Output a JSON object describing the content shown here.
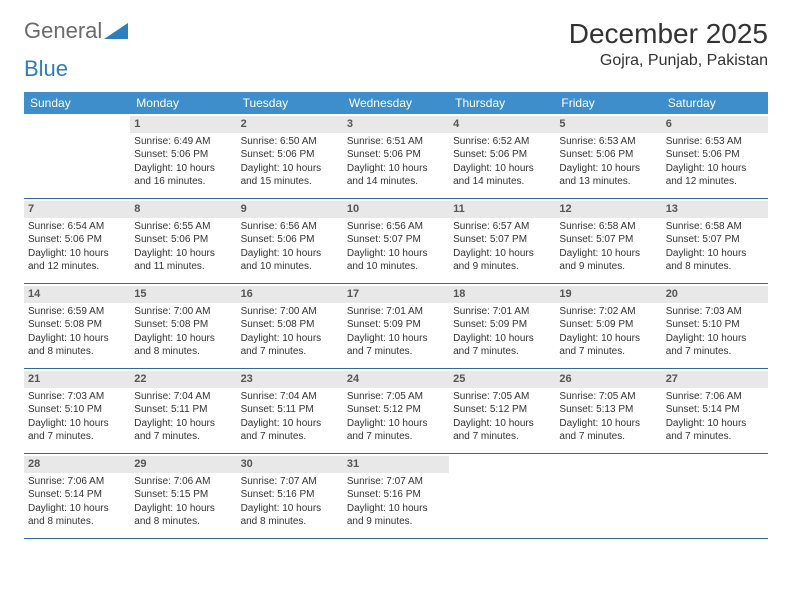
{
  "logo": {
    "text1": "General",
    "text2": "Blue"
  },
  "title": "December 2025",
  "location": "Gojra, Punjab, Pakistan",
  "colors": {
    "header_bg": "#3e8ecb",
    "header_text": "#ffffff",
    "daynum_bg": "#e8e8e8",
    "row_border": "#2b6a9e",
    "logo_gray": "#6b6b6b",
    "logo_blue": "#2b7fbf"
  },
  "days_of_week": [
    "Sunday",
    "Monday",
    "Tuesday",
    "Wednesday",
    "Thursday",
    "Friday",
    "Saturday"
  ],
  "weeks": [
    [
      {
        "n": "",
        "sr": "",
        "ss": "",
        "dl": ""
      },
      {
        "n": "1",
        "sr": "Sunrise: 6:49 AM",
        "ss": "Sunset: 5:06 PM",
        "dl": "Daylight: 10 hours and 16 minutes."
      },
      {
        "n": "2",
        "sr": "Sunrise: 6:50 AM",
        "ss": "Sunset: 5:06 PM",
        "dl": "Daylight: 10 hours and 15 minutes."
      },
      {
        "n": "3",
        "sr": "Sunrise: 6:51 AM",
        "ss": "Sunset: 5:06 PM",
        "dl": "Daylight: 10 hours and 14 minutes."
      },
      {
        "n": "4",
        "sr": "Sunrise: 6:52 AM",
        "ss": "Sunset: 5:06 PM",
        "dl": "Daylight: 10 hours and 14 minutes."
      },
      {
        "n": "5",
        "sr": "Sunrise: 6:53 AM",
        "ss": "Sunset: 5:06 PM",
        "dl": "Daylight: 10 hours and 13 minutes."
      },
      {
        "n": "6",
        "sr": "Sunrise: 6:53 AM",
        "ss": "Sunset: 5:06 PM",
        "dl": "Daylight: 10 hours and 12 minutes."
      }
    ],
    [
      {
        "n": "7",
        "sr": "Sunrise: 6:54 AM",
        "ss": "Sunset: 5:06 PM",
        "dl": "Daylight: 10 hours and 12 minutes."
      },
      {
        "n": "8",
        "sr": "Sunrise: 6:55 AM",
        "ss": "Sunset: 5:06 PM",
        "dl": "Daylight: 10 hours and 11 minutes."
      },
      {
        "n": "9",
        "sr": "Sunrise: 6:56 AM",
        "ss": "Sunset: 5:06 PM",
        "dl": "Daylight: 10 hours and 10 minutes."
      },
      {
        "n": "10",
        "sr": "Sunrise: 6:56 AM",
        "ss": "Sunset: 5:07 PM",
        "dl": "Daylight: 10 hours and 10 minutes."
      },
      {
        "n": "11",
        "sr": "Sunrise: 6:57 AM",
        "ss": "Sunset: 5:07 PM",
        "dl": "Daylight: 10 hours and 9 minutes."
      },
      {
        "n": "12",
        "sr": "Sunrise: 6:58 AM",
        "ss": "Sunset: 5:07 PM",
        "dl": "Daylight: 10 hours and 9 minutes."
      },
      {
        "n": "13",
        "sr": "Sunrise: 6:58 AM",
        "ss": "Sunset: 5:07 PM",
        "dl": "Daylight: 10 hours and 8 minutes."
      }
    ],
    [
      {
        "n": "14",
        "sr": "Sunrise: 6:59 AM",
        "ss": "Sunset: 5:08 PM",
        "dl": "Daylight: 10 hours and 8 minutes."
      },
      {
        "n": "15",
        "sr": "Sunrise: 7:00 AM",
        "ss": "Sunset: 5:08 PM",
        "dl": "Daylight: 10 hours and 8 minutes."
      },
      {
        "n": "16",
        "sr": "Sunrise: 7:00 AM",
        "ss": "Sunset: 5:08 PM",
        "dl": "Daylight: 10 hours and 7 minutes."
      },
      {
        "n": "17",
        "sr": "Sunrise: 7:01 AM",
        "ss": "Sunset: 5:09 PM",
        "dl": "Daylight: 10 hours and 7 minutes."
      },
      {
        "n": "18",
        "sr": "Sunrise: 7:01 AM",
        "ss": "Sunset: 5:09 PM",
        "dl": "Daylight: 10 hours and 7 minutes."
      },
      {
        "n": "19",
        "sr": "Sunrise: 7:02 AM",
        "ss": "Sunset: 5:09 PM",
        "dl": "Daylight: 10 hours and 7 minutes."
      },
      {
        "n": "20",
        "sr": "Sunrise: 7:03 AM",
        "ss": "Sunset: 5:10 PM",
        "dl": "Daylight: 10 hours and 7 minutes."
      }
    ],
    [
      {
        "n": "21",
        "sr": "Sunrise: 7:03 AM",
        "ss": "Sunset: 5:10 PM",
        "dl": "Daylight: 10 hours and 7 minutes."
      },
      {
        "n": "22",
        "sr": "Sunrise: 7:04 AM",
        "ss": "Sunset: 5:11 PM",
        "dl": "Daylight: 10 hours and 7 minutes."
      },
      {
        "n": "23",
        "sr": "Sunrise: 7:04 AM",
        "ss": "Sunset: 5:11 PM",
        "dl": "Daylight: 10 hours and 7 minutes."
      },
      {
        "n": "24",
        "sr": "Sunrise: 7:05 AM",
        "ss": "Sunset: 5:12 PM",
        "dl": "Daylight: 10 hours and 7 minutes."
      },
      {
        "n": "25",
        "sr": "Sunrise: 7:05 AM",
        "ss": "Sunset: 5:12 PM",
        "dl": "Daylight: 10 hours and 7 minutes."
      },
      {
        "n": "26",
        "sr": "Sunrise: 7:05 AM",
        "ss": "Sunset: 5:13 PM",
        "dl": "Daylight: 10 hours and 7 minutes."
      },
      {
        "n": "27",
        "sr": "Sunrise: 7:06 AM",
        "ss": "Sunset: 5:14 PM",
        "dl": "Daylight: 10 hours and 7 minutes."
      }
    ],
    [
      {
        "n": "28",
        "sr": "Sunrise: 7:06 AM",
        "ss": "Sunset: 5:14 PM",
        "dl": "Daylight: 10 hours and 8 minutes."
      },
      {
        "n": "29",
        "sr": "Sunrise: 7:06 AM",
        "ss": "Sunset: 5:15 PM",
        "dl": "Daylight: 10 hours and 8 minutes."
      },
      {
        "n": "30",
        "sr": "Sunrise: 7:07 AM",
        "ss": "Sunset: 5:16 PM",
        "dl": "Daylight: 10 hours and 8 minutes."
      },
      {
        "n": "31",
        "sr": "Sunrise: 7:07 AM",
        "ss": "Sunset: 5:16 PM",
        "dl": "Daylight: 10 hours and 9 minutes."
      },
      {
        "n": "",
        "sr": "",
        "ss": "",
        "dl": ""
      },
      {
        "n": "",
        "sr": "",
        "ss": "",
        "dl": ""
      },
      {
        "n": "",
        "sr": "",
        "ss": "",
        "dl": ""
      }
    ]
  ]
}
